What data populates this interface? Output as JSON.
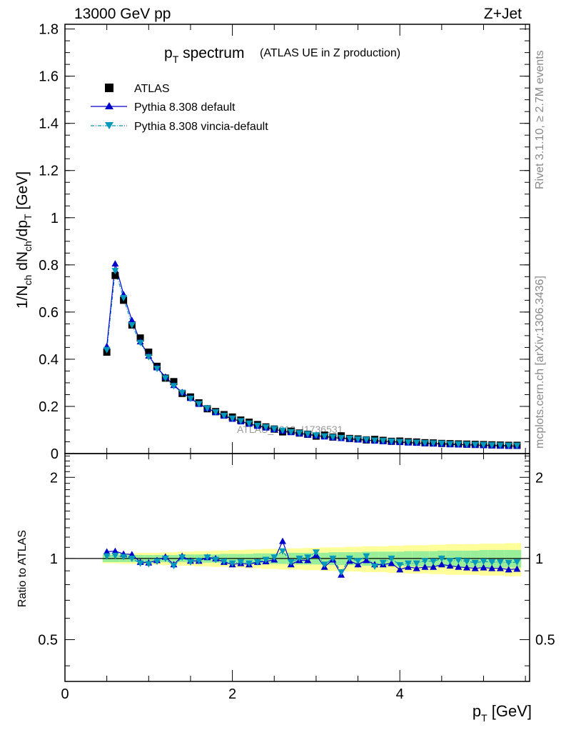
{
  "header": {
    "energy_label": "13000 GeV pp",
    "process_label": "Z+Jet"
  },
  "side_labels": {
    "rivet": "Rivet 3.1.10, ≥ 2.7M events",
    "mcplots": "mcplots.cern.ch [arXiv:1306.3436]"
  },
  "watermark": "ATLAS_2019_I1736531",
  "legend": {
    "atlas": "ATLAS",
    "pythia_default": "Pythia 8.308 default",
    "pythia_vincia": "Pythia 8.308 vincia-default"
  },
  "colors": {
    "atlas": "#000000",
    "pythia_default": "#0000cc",
    "pythia_vincia": "#0099bb",
    "band_inner": "#99ee99",
    "band_outer": "#ffff99"
  },
  "chart_data": {
    "type": "scatter",
    "title": "p_T spectrum",
    "title_main": "p",
    "title_sub": "T",
    "title_rest": " spectrum",
    "subtitle": "(ATLAS UE in Z production)",
    "xlabel": "p_T [GeV]",
    "ylabel": "1/N_ch dN_ch/dp_T [GeV]",
    "ratio_ylabel": "Ratio to ATLAS",
    "xlim": [
      0,
      5.55
    ],
    "ylim": [
      0,
      1.82
    ],
    "ratio_ylim": [
      0.35,
      2.45
    ],
    "x_ticks": [
      0,
      2,
      4
    ],
    "y_ticks": [
      0,
      0.2,
      0.4,
      0.6,
      0.8,
      1,
      1.2,
      1.4,
      1.6,
      1.8
    ],
    "ratio_ticks": [
      0.5,
      1,
      2
    ],
    "x": [
      0.5,
      0.6,
      0.7,
      0.8,
      0.9,
      1.0,
      1.1,
      1.2,
      1.3,
      1.4,
      1.5,
      1.6,
      1.7,
      1.8,
      1.9,
      2.0,
      2.1,
      2.2,
      2.3,
      2.4,
      2.5,
      2.6,
      2.7,
      2.8,
      2.9,
      3.0,
      3.1,
      3.2,
      3.3,
      3.4,
      3.5,
      3.6,
      3.7,
      3.8,
      3.9,
      4.0,
      4.1,
      4.2,
      4.3,
      4.4,
      4.5,
      4.6,
      4.7,
      4.8,
      4.9,
      5.0,
      5.1,
      5.2,
      5.3,
      5.4
    ],
    "series": [
      {
        "name": "ATLAS",
        "values": [
          0.43,
          0.755,
          0.65,
          0.545,
          0.49,
          0.43,
          0.37,
          0.32,
          0.305,
          0.255,
          0.24,
          0.215,
          0.19,
          0.178,
          0.165,
          0.155,
          0.142,
          0.133,
          0.123,
          0.113,
          0.104,
          0.092,
          0.095,
          0.087,
          0.082,
          0.074,
          0.078,
          0.07,
          0.075,
          0.064,
          0.062,
          0.058,
          0.06,
          0.056,
          0.052,
          0.053,
          0.05,
          0.049,
          0.046,
          0.045,
          0.043,
          0.042,
          0.041,
          0.04,
          0.039,
          0.038,
          0.037,
          0.036,
          0.035,
          0.035
        ]
      },
      {
        "name": "Pythia 8.308 default",
        "values": [
          0.455,
          0.805,
          0.675,
          0.565,
          0.475,
          0.415,
          0.365,
          0.325,
          0.29,
          0.26,
          0.235,
          0.21,
          0.192,
          0.175,
          0.16,
          0.147,
          0.136,
          0.126,
          0.117,
          0.11,
          0.103,
          0.096,
          0.09,
          0.085,
          0.08,
          0.076,
          0.072,
          0.068,
          0.065,
          0.062,
          0.059,
          0.057,
          0.054,
          0.052,
          0.05,
          0.048,
          0.046,
          0.045,
          0.043,
          0.042,
          0.041,
          0.039,
          0.038,
          0.037,
          0.036,
          0.035,
          0.034,
          0.033,
          0.032,
          0.032
        ]
      },
      {
        "name": "Pythia 8.308 vincia-default",
        "values": [
          0.44,
          0.775,
          0.66,
          0.545,
          0.47,
          0.41,
          0.36,
          0.32,
          0.287,
          0.258,
          0.233,
          0.211,
          0.192,
          0.176,
          0.161,
          0.149,
          0.138,
          0.128,
          0.119,
          0.112,
          0.105,
          0.098,
          0.092,
          0.087,
          0.083,
          0.078,
          0.074,
          0.07,
          0.067,
          0.064,
          0.061,
          0.059,
          0.056,
          0.054,
          0.052,
          0.05,
          0.048,
          0.047,
          0.045,
          0.044,
          0.043,
          0.041,
          0.04,
          0.039,
          0.038,
          0.037,
          0.036,
          0.035,
          0.034,
          0.034
        ]
      }
    ],
    "ratio": [
      {
        "name": "Pythia 8.308 default",
        "values": [
          1.06,
          1.065,
          1.04,
          1.035,
          0.97,
          0.965,
          0.985,
          1.015,
          0.95,
          1.02,
          0.98,
          0.98,
          1.01,
          1.0,
          0.97,
          0.95,
          0.96,
          0.95,
          0.97,
          0.975,
          0.99,
          1.16,
          0.95,
          0.985,
          0.985,
          1.03,
          0.93,
          0.99,
          0.87,
          0.98,
          0.95,
          0.985,
          0.95,
          0.95,
          0.96,
          0.91,
          0.93,
          0.92,
          0.93,
          0.93,
          0.95,
          0.94,
          0.93,
          0.925,
          0.92,
          0.925,
          0.92,
          0.92,
          0.91,
          0.915
        ]
      },
      {
        "name": "Pythia 8.308 vincia-default",
        "values": [
          1.02,
          1.025,
          1.015,
          1.0,
          0.96,
          0.955,
          0.975,
          1.0,
          0.94,
          1.01,
          0.97,
          0.98,
          1.01,
          0.99,
          0.975,
          0.96,
          0.97,
          0.96,
          0.97,
          0.99,
          1.01,
          1.065,
          0.97,
          1.0,
          1.01,
          1.055,
          0.95,
          1.0,
          0.89,
          1.0,
          0.98,
          1.02,
          0.935,
          0.965,
          1.0,
          0.945,
          0.96,
          0.96,
          0.98,
          0.975,
          1.0,
          0.98,
          0.985,
          0.975,
          0.965,
          0.975,
          0.97,
          0.97,
          0.965,
          0.97
        ]
      }
    ],
    "band_inner": [
      0.03,
      0.03,
      0.03,
      0.03,
      0.03,
      0.03,
      0.03,
      0.03,
      0.03,
      0.03,
      0.035,
      0.035,
      0.035,
      0.035,
      0.04,
      0.04,
      0.04,
      0.04,
      0.045,
      0.045,
      0.045,
      0.045,
      0.05,
      0.05,
      0.05,
      0.05,
      0.05,
      0.055,
      0.055,
      0.055,
      0.055,
      0.06,
      0.06,
      0.06,
      0.06,
      0.06,
      0.065,
      0.065,
      0.065,
      0.065,
      0.07,
      0.07,
      0.07,
      0.07,
      0.07,
      0.075,
      0.075,
      0.075,
      0.075,
      0.075
    ],
    "band_outer": [
      0.04,
      0.04,
      0.045,
      0.045,
      0.05,
      0.05,
      0.05,
      0.055,
      0.055,
      0.06,
      0.06,
      0.065,
      0.065,
      0.07,
      0.07,
      0.075,
      0.075,
      0.08,
      0.08,
      0.085,
      0.085,
      0.09,
      0.09,
      0.09,
      0.095,
      0.095,
      0.1,
      0.1,
      0.1,
      0.105,
      0.105,
      0.11,
      0.11,
      0.11,
      0.115,
      0.115,
      0.12,
      0.12,
      0.12,
      0.125,
      0.125,
      0.13,
      0.13,
      0.13,
      0.13,
      0.135,
      0.135,
      0.135,
      0.14,
      0.14
    ]
  }
}
